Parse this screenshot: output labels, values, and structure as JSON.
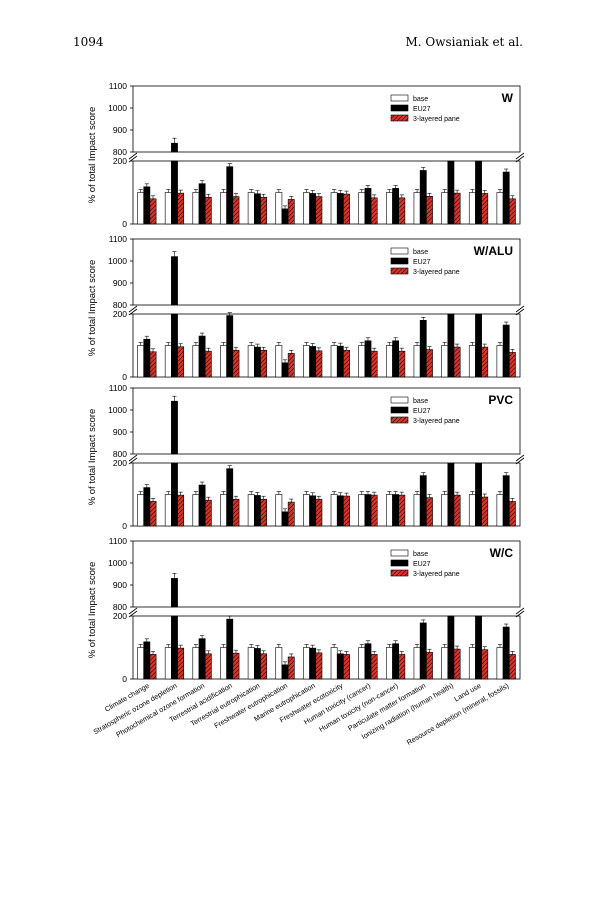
{
  "header": {
    "page_number": "1094",
    "running_head": "M. Owsianiak et al."
  },
  "colors": {
    "base": "#ffffff",
    "eu27": "#000000",
    "pane": "#d9342b",
    "pane_hatch": "#000000"
  },
  "chart_data": {
    "type": "bar",
    "ylabel": "% of total Impact score",
    "upper_ticks": [
      "800",
      "900",
      "1000",
      "1100"
    ],
    "lower_ticks": [
      "0",
      "200"
    ],
    "upper_range": [
      800,
      1100
    ],
    "lower_range": [
      0,
      200
    ],
    "legend": [
      "base",
      "EU27",
      "3-layered pane"
    ],
    "legend_position": "top-right",
    "categories": [
      "Climate change",
      "Stratospheric ozone depletion",
      "Photochemical ozone formation",
      "Terrestrial acidification",
      "Terrestrial eutrophication",
      "Freshwater eutrophication",
      "Marine eutrophication",
      "Freshwater ecotoxicity",
      "Human toxicity (cancer)",
      "Human toxicity (non-cancer)",
      "Particulate matter formation",
      "Ionizing radiation (human health)",
      "Land use",
      "Resource depletion (mineral, fossils)"
    ],
    "panels": [
      {
        "label": "W",
        "series": [
          {
            "name": "base",
            "values": [
              100,
              100,
              100,
              100,
              100,
              100,
              100,
              100,
              100,
              100,
              100,
              100,
              100,
              100
            ]
          },
          {
            "name": "EU27",
            "values": [
              118,
              840,
              128,
              182,
              96,
              48,
              97,
              97,
              113,
              113,
              170,
              555,
              285,
              165
            ]
          },
          {
            "name": "3-layered pane",
            "values": [
              80,
              98,
              85,
              87,
              85,
              78,
              87,
              95,
              83,
              83,
              88,
              98,
              97,
              80
            ]
          }
        ]
      },
      {
        "label": "W/ALU",
        "series": [
          {
            "name": "base",
            "values": [
              100,
              100,
              100,
              100,
              100,
              100,
              100,
              100,
              100,
              100,
              100,
              100,
              100,
              100
            ]
          },
          {
            "name": "EU27",
            "values": [
              120,
              1020,
              130,
              195,
              95,
              45,
              97,
              98,
              115,
              115,
              180,
              550,
              290,
              165
            ]
          },
          {
            "name": "3-layered pane",
            "values": [
              80,
              96,
              82,
              85,
              85,
              75,
              83,
              85,
              82,
              82,
              87,
              95,
              95,
              78
            ]
          }
        ]
      },
      {
        "label": "PVC",
        "series": [
          {
            "name": "base",
            "values": [
              100,
              100,
              100,
              100,
              100,
              100,
              100,
              100,
              100,
              100,
              100,
              100,
              100,
              100
            ]
          },
          {
            "name": "EU27",
            "values": [
              122,
              1040,
              130,
              182,
              97,
              45,
              96,
              96,
              100,
              100,
              160,
              560,
              290,
              160
            ]
          },
          {
            "name": "3-layered pane",
            "values": [
              78,
              98,
              82,
              85,
              85,
              76,
              85,
              95,
              98,
              98,
              90,
              98,
              92,
              78
            ]
          }
        ]
      },
      {
        "label": "W/C",
        "series": [
          {
            "name": "base",
            "values": [
              100,
              100,
              100,
              100,
              100,
              100,
              100,
              100,
              100,
              100,
              100,
              100,
              100,
              100
            ]
          },
          {
            "name": "EU27",
            "values": [
              118,
              930,
              128,
              190,
              97,
              45,
              98,
              80,
              112,
              112,
              178,
              560,
              290,
              165
            ]
          },
          {
            "name": "3-layered pane",
            "values": [
              78,
              98,
              80,
              82,
              80,
              70,
              83,
              78,
              78,
              78,
              85,
              95,
              93,
              78
            ]
          }
        ]
      }
    ]
  }
}
